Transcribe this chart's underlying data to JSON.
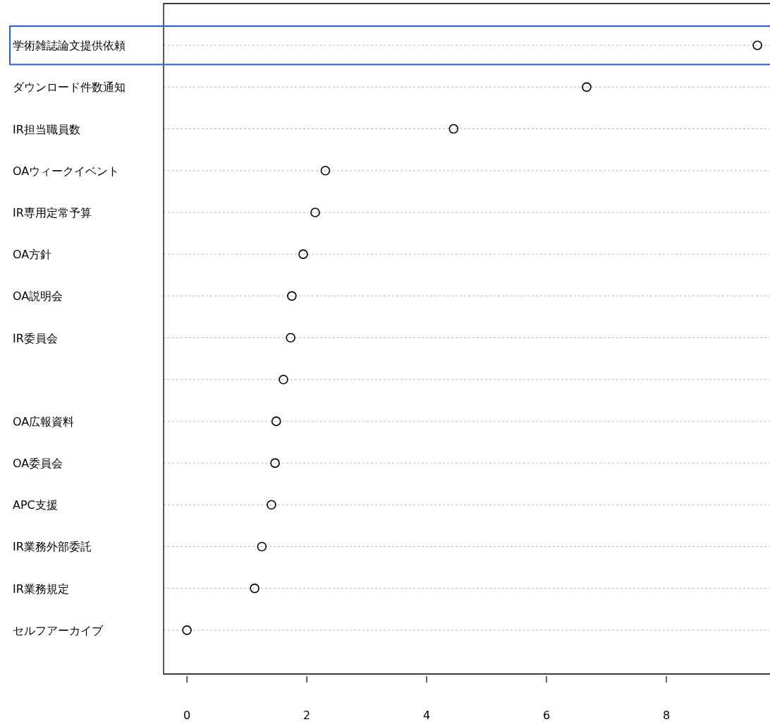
{
  "chart_data": {
    "type": "scatter",
    "orientation": "horizontal",
    "categories": [
      "学術雑誌論文提供依頼",
      "ダウンロード件数通知",
      "IR担当職員数",
      "OAウィークイベント",
      "IR専用定常予算",
      "OA方針",
      "OA説明会",
      "IR委員会",
      null,
      "OA広報資料",
      "OA委員会",
      "APC支援",
      "IR業務外部委託",
      "IR業務規定",
      "セルフアーカイブ"
    ],
    "values": [
      9.52,
      6.67,
      4.45,
      2.31,
      2.14,
      1.94,
      1.75,
      1.73,
      1.61,
      1.49,
      1.47,
      1.41,
      1.25,
      1.13,
      0
    ],
    "color": "#000000",
    "marker": "circle",
    "grid": "y",
    "line_style": "dotted",
    "xlim": [
      -0.39,
      9.73
    ],
    "xticks": [
      0,
      2,
      4,
      6,
      8
    ]
  }
}
